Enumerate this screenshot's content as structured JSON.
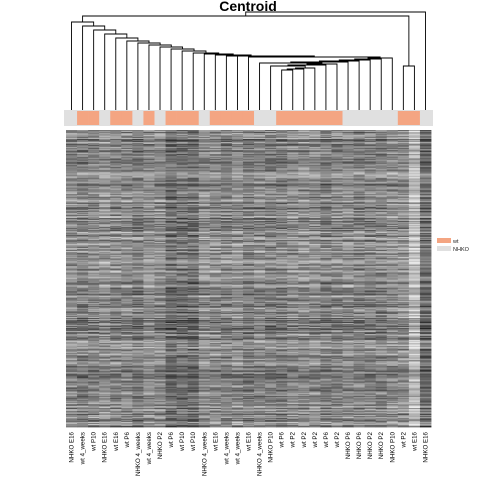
{
  "chart_data": {
    "type": "heatmap",
    "title": "Centroid",
    "columns": [
      "NHKO E16",
      "wt 4_weeks",
      "wt P10",
      "NHKO E16",
      "wt E16",
      "wt P6",
      "NHKO 4_weeks",
      "wt 4_weeks",
      "NHKO P2",
      "wt P6",
      "wt P10",
      "wt P10",
      "NHKO 4_weeks",
      "wt E16",
      "wt 4_weeks",
      "wt 4_weeks",
      "wt E16",
      "NHKO 4_weeks",
      "NHKO P10",
      "wt P6",
      "wt P2",
      "wt P2",
      "wt P2",
      "wt P6",
      "wt P2",
      "NHKO P6",
      "NHKO P6",
      "NHKO P2",
      "NHKO P2",
      "NHKO P10",
      "wt P2",
      "wt E16",
      "NHKO E16"
    ],
    "groups": [
      "NHKO",
      "wt",
      "wt",
      "NHKO",
      "wt",
      "wt",
      "NHKO",
      "wt",
      "NHKO",
      "wt",
      "wt",
      "wt",
      "NHKO",
      "wt",
      "wt",
      "wt",
      "wt",
      "NHKO",
      "NHKO",
      "wt",
      "wt",
      "wt",
      "wt",
      "wt",
      "wt",
      "NHKO",
      "NHKO",
      "NHKO",
      "NHKO",
      "NHKO",
      "wt",
      "wt",
      "NHKO"
    ],
    "legend": [
      {
        "label": "wt",
        "color": "#f4a582"
      },
      {
        "label": "NHKO",
        "color": "#e0e0e0"
      }
    ],
    "n_rows": 300,
    "scale": "grayscale"
  }
}
